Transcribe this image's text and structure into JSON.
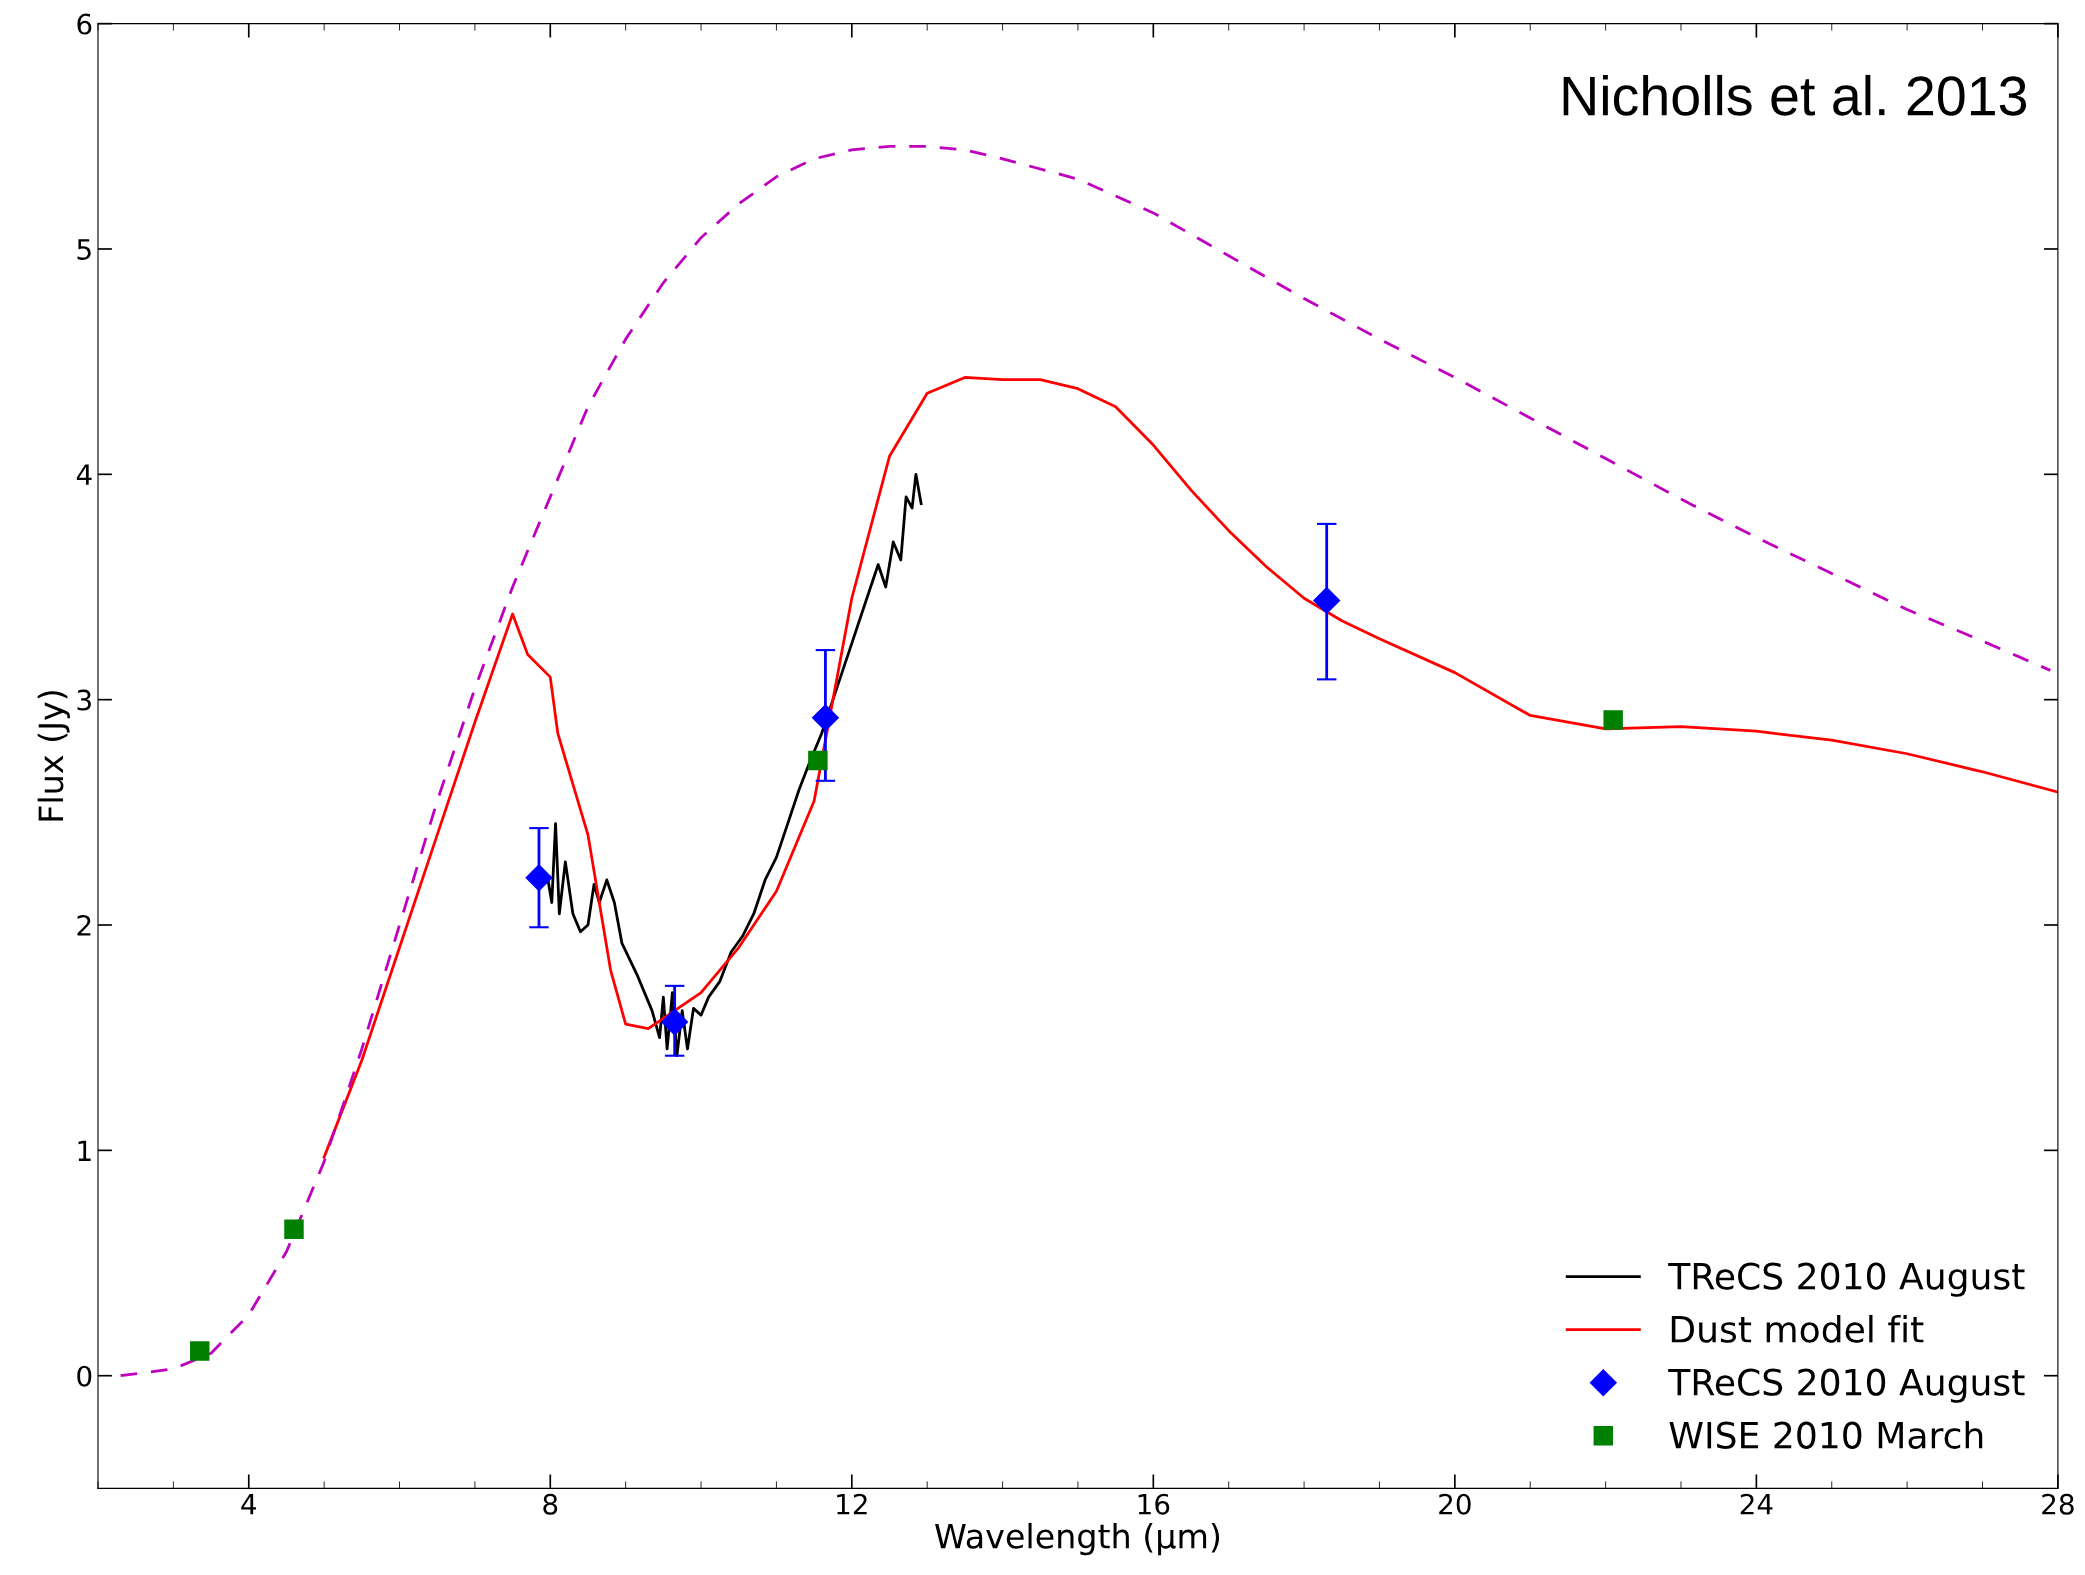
{
  "chart_data": {
    "type": "line",
    "xlabel": "Wavelength (μm)",
    "ylabel": "Flux (Jy)",
    "annotations": [
      "Nicholls et al. 2013"
    ],
    "xlim": [
      2,
      28
    ],
    "ylim": [
      -0.5,
      6
    ],
    "xticks": [
      4,
      8,
      12,
      16,
      20,
      24,
      28
    ],
    "yticks": [
      0,
      1,
      2,
      3,
      4,
      5,
      6
    ],
    "grid": false,
    "legend": "bottom right",
    "series": [
      {
        "name": "TReCS 2010 August",
        "color": "#000000",
        "line_style": "solid",
        "x": [
          7.97,
          8.02,
          8.07,
          8.12,
          8.2,
          8.3,
          8.4,
          8.5,
          8.58,
          8.65,
          8.75,
          8.85,
          8.95,
          9.05,
          9.15,
          9.25,
          9.35,
          9.45,
          9.5,
          9.55,
          9.62,
          9.68,
          9.75,
          9.82,
          9.9,
          10.0,
          10.1,
          10.25,
          10.4,
          10.55,
          10.7,
          10.85,
          11.0,
          11.15,
          11.3,
          11.45,
          11.6,
          11.75,
          11.9,
          12.0,
          12.1,
          12.2,
          12.35,
          12.45,
          12.55,
          12.65,
          12.72,
          12.8,
          12.85,
          12.92
        ],
        "values": [
          2.2,
          2.1,
          2.45,
          2.05,
          2.28,
          2.05,
          1.97,
          2.0,
          2.18,
          2.1,
          2.2,
          2.1,
          1.92,
          1.85,
          1.78,
          1.7,
          1.62,
          1.5,
          1.68,
          1.45,
          1.7,
          1.42,
          1.62,
          1.45,
          1.63,
          1.6,
          1.68,
          1.75,
          1.88,
          1.95,
          2.05,
          2.2,
          2.3,
          2.45,
          2.6,
          2.73,
          2.85,
          3.0,
          3.15,
          3.25,
          3.35,
          3.45,
          3.6,
          3.5,
          3.7,
          3.62,
          3.9,
          3.85,
          4.0,
          3.87
        ]
      },
      {
        "name": "Dust model fit",
        "color": "#ff0000",
        "line_style": "solid",
        "x": [
          5.0,
          5.5,
          6,
          6.5,
          7,
          7.5,
          7.7,
          8.0,
          8.1,
          8.5,
          8.8,
          9.0,
          9.3,
          10,
          10.5,
          11,
          11.5,
          12,
          12.5,
          13,
          13.5,
          14,
          14.5,
          15,
          15.5,
          16,
          16.5,
          17,
          17.5,
          18,
          18.5,
          19,
          20,
          21,
          22,
          23,
          24,
          25,
          26,
          27,
          28
        ],
        "values": [
          0.97,
          1.4,
          1.9,
          2.4,
          2.9,
          3.38,
          3.2,
          3.1,
          2.85,
          2.4,
          1.8,
          1.56,
          1.54,
          1.7,
          1.9,
          2.15,
          2.55,
          3.45,
          4.08,
          4.36,
          4.43,
          4.42,
          4.42,
          4.38,
          4.3,
          4.13,
          3.93,
          3.75,
          3.59,
          3.45,
          3.35,
          3.27,
          3.12,
          2.93,
          2.87,
          2.88,
          2.86,
          2.82,
          2.76,
          2.68,
          2.59
        ]
      },
      {
        "color": "#bf00bf",
        "line_style": "dashed",
        "x": [
          2.3,
          3,
          3.5,
          4,
          4.5,
          5,
          5.5,
          6,
          6.5,
          7,
          7.5,
          8,
          8.5,
          9,
          9.5,
          10,
          10.5,
          11,
          11.5,
          12,
          12.5,
          13,
          13.5,
          14,
          15,
          16,
          17,
          18,
          19,
          20,
          21,
          22,
          23,
          24,
          25,
          26,
          27,
          27.9
        ],
        "values": [
          0,
          0.03,
          0.1,
          0.27,
          0.55,
          0.95,
          1.45,
          2.0,
          2.55,
          3.05,
          3.5,
          3.9,
          4.3,
          4.6,
          4.85,
          5.05,
          5.2,
          5.32,
          5.4,
          5.44,
          5.455,
          5.455,
          5.44,
          5.4,
          5.31,
          5.16,
          4.97,
          4.78,
          4.6,
          4.43,
          4.25,
          4.07,
          3.89,
          3.72,
          3.56,
          3.4,
          3.26,
          3.13
        ]
      },
      {
        "name": "TReCS 2010 August",
        "type": "scatter",
        "marker": "diamond",
        "color": "#0000ff",
        "x": [
          7.85,
          9.65,
          11.65,
          18.3
        ],
        "values": [
          2.21,
          1.57,
          2.92,
          3.44
        ],
        "errors": [
          [
            1.99,
            2.43
          ],
          [
            1.42,
            1.73
          ],
          [
            2.64,
            3.22
          ],
          [
            3.09,
            3.78
          ]
        ]
      },
      {
        "name": "WISE 2010 March",
        "type": "scatter",
        "marker": "square",
        "color": "#008000",
        "x": [
          3.35,
          4.6,
          11.55,
          22.1
        ],
        "values": [
          0.11,
          0.65,
          2.73,
          2.91
        ]
      }
    ]
  }
}
